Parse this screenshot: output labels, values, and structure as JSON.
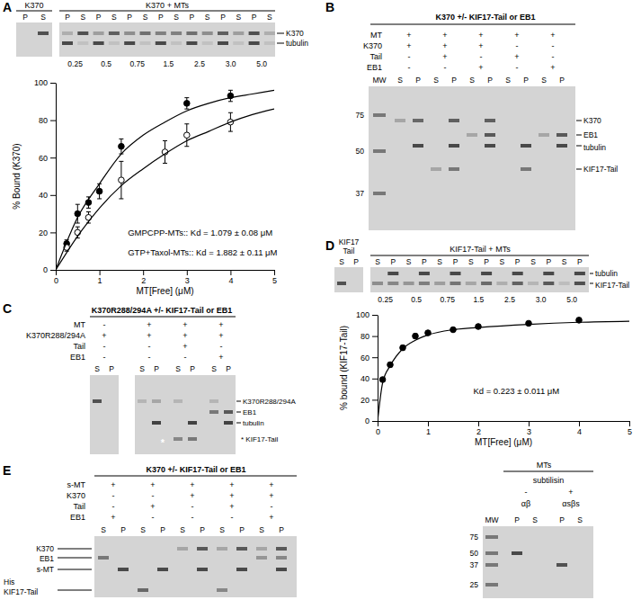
{
  "chart_data": [
    {
      "type": "scatter",
      "x_label": "MT[Free] (μM)",
      "y_label": "% Bound (K370)",
      "xlim": [
        0,
        5
      ],
      "xticks": [
        0,
        1,
        2,
        3,
        4,
        5
      ],
      "ylim": [
        0,
        100
      ],
      "yticks": [
        0,
        20,
        40,
        60,
        80,
        100
      ],
      "series": [
        {
          "type": "scatter",
          "marker": "circle",
          "color": "#000000",
          "x": [
            0.25,
            0.5,
            0.75,
            1,
            1.5,
            3,
            4
          ],
          "values": [
            14,
            30,
            36,
            42,
            66,
            89,
            93
          ],
          "errors": [
            2,
            5,
            3,
            4,
            4,
            3,
            3
          ]
        },
        {
          "type": "scatter",
          "marker": "open_circle",
          "color": "#000000",
          "x": [
            0.25,
            0.5,
            0.75,
            1.5,
            2.5,
            3,
            4
          ],
          "values": [
            12,
            20,
            28,
            48,
            63,
            72,
            79
          ],
          "errors": [
            2,
            3,
            3,
            10,
            6,
            6,
            5
          ]
        },
        {
          "type": "line",
          "line_style": "solid",
          "color": "#000000",
          "x": [
            0,
            0.5,
            1,
            1.5,
            2,
            2.5,
            3,
            3.5,
            4,
            4.5,
            5
          ],
          "values": [
            0,
            28,
            46,
            62,
            72,
            79,
            85,
            89,
            92,
            94,
            96
          ]
        },
        {
          "type": "line",
          "line_style": "solid",
          "color": "#000000",
          "x": [
            0,
            0.5,
            1,
            1.5,
            2,
            2.5,
            3,
            3.5,
            4,
            4.5,
            5
          ],
          "values": [
            0,
            18,
            33,
            45,
            54,
            62,
            69,
            74,
            79,
            83,
            86
          ]
        }
      ],
      "annotations": [
        "GMPCPP-MTs:: Kd = 1.079 ± 0.08 μM",
        "GTP+Taxol-MTs:: Kd = 1.882 ± 0.11 μM"
      ]
    },
    {
      "type": "scatter",
      "x_label": "MT[Free] (μM)",
      "y_label": "% bound (KIF17-Tail)",
      "xlim": [
        0,
        5
      ],
      "xticks": [
        0,
        1,
        2,
        3,
        4,
        5
      ],
      "ylim": [
        0,
        100
      ],
      "yticks": [
        0,
        20,
        40,
        60,
        80,
        100
      ],
      "series": [
        {
          "type": "scatter",
          "marker": "circle",
          "color": "#000000",
          "x": [
            0.1,
            0.25,
            0.5,
            0.75,
            1,
            1.5,
            2,
            3,
            4
          ],
          "values": [
            39,
            53,
            69,
            80,
            83,
            86,
            89,
            92,
            95
          ],
          "errors": [
            2,
            2,
            2,
            2,
            1,
            1,
            1,
            1,
            2
          ]
        },
        {
          "type": "line",
          "line_style": "solid",
          "color": "#000000",
          "x": [
            0,
            0.1,
            0.25,
            0.5,
            0.75,
            1,
            1.5,
            2,
            3,
            4,
            5
          ],
          "values": [
            0,
            36,
            52,
            68,
            76,
            81,
            86,
            88,
            91,
            93,
            94
          ]
        }
      ],
      "annotations": [
        "Kd = 0.223 ± 0.011 μM"
      ]
    }
  ],
  "figure": {
    "A": {
      "letter": "A",
      "left_title": "K370",
      "right_title": "K370 + MTs",
      "left_lanes": [
        "P",
        "S"
      ],
      "right_lanes": [
        "P",
        "S",
        "P",
        "S",
        "P",
        "S",
        "P",
        "S",
        "P",
        "S",
        "P",
        "S",
        "P",
        "S"
      ],
      "concentrations": [
        "0.25",
        "0.5",
        "0.75",
        "1.5",
        "2.5",
        "3.0",
        "5.0"
      ],
      "band_labels": [
        "K370",
        "tubulin"
      ]
    },
    "B": {
      "letter": "B",
      "title": "K370 +/- KIF17-Tail or EB1",
      "rows": [
        {
          "label": "MT",
          "signs": [
            "+",
            "+",
            "+",
            "+",
            "+"
          ]
        },
        {
          "label": "K370",
          "signs": [
            "+",
            "+",
            "+",
            "-",
            "-"
          ]
        },
        {
          "label": "Tail",
          "signs": [
            "-",
            "+",
            "-",
            "+",
            "-"
          ]
        },
        {
          "label": "EB1",
          "signs": [
            "-",
            "-",
            "+",
            "-",
            "+"
          ]
        }
      ],
      "mw_label": "MW",
      "lanes": [
        "S",
        "P",
        "S",
        "P",
        "S",
        "P",
        "S",
        "P",
        "S",
        "P"
      ],
      "mw": [
        75,
        50,
        37
      ],
      "band_labels": [
        "K370",
        "EB1",
        "tubulin",
        "KIF17-Tail"
      ]
    },
    "C": {
      "letter": "C",
      "title": "K370R288/294A +/- KIF17-Tail or EB1",
      "rows": [
        {
          "label": "MT",
          "signs": [
            "-",
            "+",
            "+",
            "+"
          ]
        },
        {
          "label": "K370R288/294A",
          "signs": [
            "+",
            "+",
            "+",
            "+"
          ]
        },
        {
          "label": "Tail",
          "signs": [
            "-",
            "-",
            "+",
            "-"
          ]
        },
        {
          "label": "EB1",
          "signs": [
            "-",
            "-",
            "-",
            "+"
          ]
        }
      ],
      "lanes": [
        "S",
        "P",
        "S",
        "P",
        "S",
        "P",
        "S",
        "P"
      ],
      "gel_mark": "*",
      "band_labels": [
        "K370R288/294A",
        "EB1",
        "tubulin",
        "* KIF17-Tail"
      ]
    },
    "D": {
      "letter": "D",
      "left_title": [
        "KIF17",
        "Tail"
      ],
      "right_title": "KIF17-Tail + MTs",
      "left_lanes": [
        "S",
        "P"
      ],
      "right_lanes": [
        "S",
        "P",
        "S",
        "P",
        "S",
        "P",
        "S",
        "P",
        "S",
        "P",
        "S",
        "P",
        "S",
        "P"
      ],
      "concentrations": [
        "0.25",
        "0.5",
        "0.75",
        "1.5",
        "2.5",
        "3.0",
        "5.0"
      ],
      "band_labels": [
        "tubulin",
        "KIF17-Tail"
      ]
    },
    "E": {
      "letter": "E",
      "title": "K370 +/- KIF17-Tail or EB1",
      "rows": [
        {
          "label": "s-MT",
          "signs": [
            "+",
            "+",
            "+",
            "+",
            "+"
          ]
        },
        {
          "label": "K370",
          "signs": [
            "-",
            "-",
            "+",
            "+",
            "+"
          ]
        },
        {
          "label": "Tail",
          "signs": [
            "-",
            "+",
            "-",
            "+",
            "-"
          ]
        },
        {
          "label": "EB1",
          "signs": [
            "+",
            "-",
            "-",
            "-",
            "+"
          ]
        }
      ],
      "lanes": [
        "S",
        "P",
        "S",
        "P",
        "S",
        "P",
        "S",
        "P",
        "S",
        "P"
      ],
      "band_labels": [
        "K370",
        "EB1",
        "s-MT",
        "His",
        "KIF17-Tail"
      ],
      "right": {
        "title": "MTs",
        "treatment": "subtilisin",
        "signs": [
          "-",
          "+"
        ],
        "tubulins": [
          "αβ",
          "αsβs"
        ],
        "mw_label": "MW",
        "lanes": [
          "P",
          "S",
          "P",
          "S"
        ],
        "mw": [
          75,
          50,
          37,
          25
        ]
      }
    }
  }
}
